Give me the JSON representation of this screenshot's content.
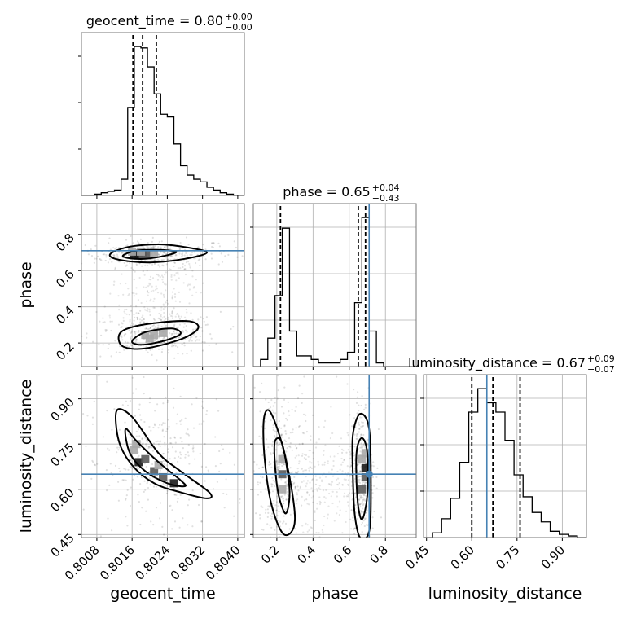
{
  "chart_data": {
    "type": "corner",
    "parameters": [
      "geocent_time",
      "phase",
      "luminosity_distance"
    ],
    "truths": {
      "phase": 0.71,
      "luminosity_distance": 0.65
    },
    "truth_color": "#4682b4",
    "axes": {
      "geocent_time": {
        "range": [
          0.80045,
          0.80415
        ],
        "ticks": [
          0.8008,
          0.8016,
          0.8024,
          0.8032,
          0.804
        ],
        "tick_labels": [
          "0.8008",
          "0.8016",
          "0.8024",
          "0.8032",
          "0.8040"
        ]
      },
      "phase": {
        "range": [
          0.07,
          0.97
        ],
        "ticks": [
          0.2,
          0.4,
          0.6,
          0.8
        ],
        "tick_labels": [
          "0.2",
          "0.4",
          "0.6",
          "0.8"
        ]
      },
      "luminosity_distance": {
        "range": [
          0.44,
          0.98
        ],
        "ticks": [
          0.45,
          0.6,
          0.75,
          0.9
        ],
        "tick_labels": [
          "0.45",
          "0.60",
          "0.75",
          "0.90"
        ]
      }
    },
    "titles": [
      {
        "param": "geocent_time",
        "label": "geocent_time = 0.80",
        "plus": "+0.00",
        "minus": "−0.00"
      },
      {
        "param": "phase",
        "label": "phase = 0.65",
        "plus": "+0.04",
        "minus": "−0.43"
      },
      {
        "param": "luminosity_distance",
        "label": "luminosity_distance = 0.67",
        "plus": "+0.09",
        "minus": "−0.07"
      }
    ],
    "quantiles": {
      "geocent_time": [
        0.80162,
        0.80184,
        0.80215
      ],
      "phase": [
        0.22,
        0.65,
        0.69
      ],
      "luminosity_distance": [
        0.6,
        0.67,
        0.76
      ]
    },
    "histograms": {
      "geocent_time": {
        "edges": [
          0.80045,
          0.8006,
          0.80075,
          0.8009,
          0.80105,
          0.8012,
          0.80135,
          0.8015,
          0.80165,
          0.8018,
          0.80195,
          0.8021,
          0.80225,
          0.8024,
          0.80255,
          0.8027,
          0.80285,
          0.803,
          0.80315,
          0.8033,
          0.80345,
          0.8036,
          0.80375,
          0.8039,
          0.80405,
          0.80415
        ],
        "counts": [
          0,
          0,
          1,
          2,
          3,
          4,
          12,
          65,
          110,
          109,
          95,
          75,
          60,
          58,
          38,
          22,
          15,
          12,
          10,
          6,
          4,
          2,
          1,
          0,
          0
        ]
      },
      "phase": {
        "edges": [
          0.07,
          0.11,
          0.15,
          0.19,
          0.23,
          0.27,
          0.31,
          0.35,
          0.39,
          0.43,
          0.47,
          0.51,
          0.55,
          0.59,
          0.63,
          0.67,
          0.71,
          0.75,
          0.79,
          0.83,
          0.87,
          0.91,
          0.95,
          0.97
        ],
        "counts": [
          0,
          2,
          8,
          20,
          39,
          10,
          3,
          3,
          2,
          1,
          1,
          1,
          2,
          4,
          18,
          42,
          10,
          1,
          0,
          0,
          0,
          0,
          0
        ]
      },
      "luminosity_distance": {
        "edges": [
          0.44,
          0.47,
          0.5,
          0.53,
          0.56,
          0.59,
          0.62,
          0.65,
          0.68,
          0.71,
          0.74,
          0.77,
          0.8,
          0.83,
          0.86,
          0.89,
          0.92,
          0.95,
          0.98
        ],
        "counts": [
          0,
          3,
          12,
          25,
          48,
          80,
          95,
          86,
          80,
          62,
          40,
          26,
          16,
          10,
          4,
          2,
          1,
          0
        ]
      }
    },
    "contours": {
      "phase|geocent_time": [
        [
          [
            0.8011,
            0.69
          ],
          [
            0.8015,
            0.73
          ],
          [
            0.8022,
            0.745
          ],
          [
            0.8028,
            0.73
          ],
          [
            0.8033,
            0.7
          ],
          [
            0.8028,
            0.665
          ],
          [
            0.802,
            0.645
          ],
          [
            0.8013,
            0.66
          ]
        ],
        [
          [
            0.8014,
            0.685
          ],
          [
            0.8017,
            0.71
          ],
          [
            0.8022,
            0.715
          ],
          [
            0.8026,
            0.705
          ],
          [
            0.8024,
            0.685
          ],
          [
            0.8019,
            0.665
          ],
          [
            0.8015,
            0.67
          ]
        ],
        [
          [
            0.8013,
            0.24
          ],
          [
            0.8015,
            0.28
          ],
          [
            0.8021,
            0.31
          ],
          [
            0.8029,
            0.32
          ],
          [
            0.8031,
            0.28
          ],
          [
            0.8027,
            0.22
          ],
          [
            0.8019,
            0.17
          ],
          [
            0.8014,
            0.18
          ]
        ],
        [
          [
            0.8016,
            0.21
          ],
          [
            0.8019,
            0.26
          ],
          [
            0.8025,
            0.28
          ],
          [
            0.8027,
            0.25
          ],
          [
            0.8023,
            0.21
          ],
          [
            0.8018,
            0.19
          ]
        ]
      ],
      "luminosity_distance|geocent_time": [
        [
          [
            0.80125,
            0.86
          ],
          [
            0.8016,
            0.84
          ],
          [
            0.8022,
            0.72
          ],
          [
            0.8027,
            0.66
          ],
          [
            0.80335,
            0.59
          ],
          [
            0.8033,
            0.57
          ],
          [
            0.8027,
            0.59
          ],
          [
            0.8021,
            0.62
          ],
          [
            0.8016,
            0.68
          ],
          [
            0.8013,
            0.76
          ]
        ],
        [
          [
            0.80145,
            0.8
          ],
          [
            0.8017,
            0.76
          ],
          [
            0.8022,
            0.69
          ],
          [
            0.8027,
            0.63
          ],
          [
            0.8028,
            0.61
          ],
          [
            0.8024,
            0.62
          ],
          [
            0.8019,
            0.66
          ],
          [
            0.80155,
            0.72
          ]
        ]
      ],
      "luminosity_distance|phase": [
        [
          [
            0.13,
            0.84
          ],
          [
            0.17,
            0.85
          ],
          [
            0.25,
            0.7
          ],
          [
            0.3,
            0.5
          ],
          [
            0.24,
            0.45
          ],
          [
            0.17,
            0.55
          ],
          [
            0.13,
            0.72
          ]
        ],
        [
          [
            0.19,
            0.76
          ],
          [
            0.23,
            0.75
          ],
          [
            0.27,
            0.6
          ],
          [
            0.25,
            0.52
          ],
          [
            0.21,
            0.58
          ],
          [
            0.19,
            0.68
          ]
        ],
        [
          [
            0.62,
            0.78
          ],
          [
            0.66,
            0.85
          ],
          [
            0.71,
            0.8
          ],
          [
            0.72,
            0.6
          ],
          [
            0.71,
            0.46
          ],
          [
            0.66,
            0.44
          ],
          [
            0.63,
            0.52
          ],
          [
            0.62,
            0.65
          ]
        ],
        [
          [
            0.64,
            0.72
          ],
          [
            0.67,
            0.77
          ],
          [
            0.7,
            0.72
          ],
          [
            0.7,
            0.58
          ],
          [
            0.67,
            0.5
          ],
          [
            0.645,
            0.57
          ]
        ]
      ]
    },
    "density_cells": {
      "phase|geocent_time": [
        [
          0.80165,
          0.685,
          3
        ],
        [
          0.80175,
          0.685,
          3
        ],
        [
          0.80185,
          0.685,
          2
        ],
        [
          0.80195,
          0.685,
          2
        ],
        [
          0.8018,
          0.705,
          1
        ],
        [
          0.8021,
          0.695,
          1
        ],
        [
          0.8016,
          0.705,
          1
        ],
        [
          0.8019,
          0.245,
          1
        ],
        [
          0.8021,
          0.245,
          1
        ],
        [
          0.8023,
          0.255,
          1
        ],
        [
          0.802,
          0.225,
          1
        ]
      ],
      "luminosity_distance|geocent_time": [
        [
          0.80175,
          0.69,
          3
        ],
        [
          0.8019,
          0.7,
          2
        ],
        [
          0.8017,
          0.75,
          1
        ],
        [
          0.8021,
          0.66,
          2
        ],
        [
          0.8023,
          0.64,
          2
        ],
        [
          0.80255,
          0.62,
          3
        ],
        [
          0.80165,
          0.73,
          1
        ],
        [
          0.8022,
          0.68,
          1
        ]
      ],
      "luminosity_distance|phase": [
        [
          0.69,
          0.67,
          3
        ],
        [
          0.69,
          0.64,
          2
        ],
        [
          0.67,
          0.7,
          1
        ],
        [
          0.67,
          0.6,
          2
        ],
        [
          0.23,
          0.65,
          2
        ],
        [
          0.23,
          0.6,
          1
        ],
        [
          0.23,
          0.7,
          1
        ],
        [
          0.69,
          0.72,
          1
        ]
      ]
    },
    "grid": true
  }
}
